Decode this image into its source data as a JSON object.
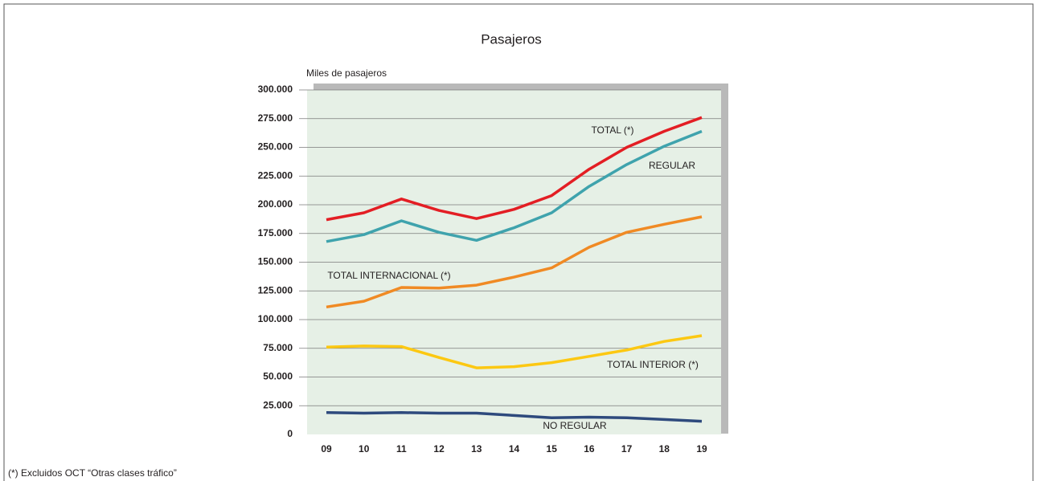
{
  "chart_data": {
    "type": "line",
    "title": "Pasajeros",
    "y_label": "Miles de pasajeros",
    "footnote": "(*) Excluidos OCT “Otras clases tráfico”",
    "categories": [
      "09",
      "10",
      "11",
      "12",
      "13",
      "14",
      "15",
      "16",
      "17",
      "18",
      "19"
    ],
    "series": [
      {
        "name": "TOTAL (*)",
        "color": "#e31e24",
        "values": [
          187000,
          193000,
          205000,
          195000,
          188000,
          196000,
          208000,
          231000,
          250000,
          264000,
          276000
        ]
      },
      {
        "name": "REGULAR",
        "color": "#3fa3ad",
        "values": [
          168000,
          174000,
          186000,
          176000,
          169000,
          180000,
          193000,
          216000,
          235000,
          251000,
          264000
        ]
      },
      {
        "name": "TOTAL INTERNACIONAL (*)",
        "color": "#f08a24",
        "values": [
          111000,
          116000,
          128000,
          127500,
          130000,
          137000,
          145000,
          163000,
          176000,
          183000,
          189500
        ]
      },
      {
        "name": "TOTAL INTERIOR (*)",
        "color": "#fcc812",
        "values": [
          76000,
          77000,
          76500,
          67000,
          58000,
          59000,
          62500,
          68000,
          73500,
          81000,
          86000
        ]
      },
      {
        "name": "NO REGULAR",
        "color": "#2e4a7d",
        "values": [
          19000,
          18500,
          19000,
          18500,
          18500,
          16500,
          14500,
          15000,
          14500,
          13000,
          11500
        ]
      }
    ],
    "ylim": [
      0,
      300000
    ],
    "yticks": [
      0,
      {
        "value": 25000,
        "label": "25.000"
      },
      {
        "value": 50000,
        "label": "50.000"
      },
      {
        "value": 75000,
        "label": "75.000"
      },
      {
        "value": 100000,
        "label": "100.000"
      },
      {
        "value": 125000,
        "label": "125.000"
      },
      {
        "value": 150000,
        "label": "150.000"
      },
      {
        "value": 175000,
        "label": "175.000"
      },
      {
        "value": 200000,
        "label": "200.000"
      },
      {
        "value": 225000,
        "label": "225.000"
      },
      {
        "value": 250000,
        "label": "250.000"
      },
      {
        "value": 275000,
        "label": "275.000"
      },
      {
        "value": 300000,
        "label": "300.000"
      }
    ],
    "grid": true
  }
}
